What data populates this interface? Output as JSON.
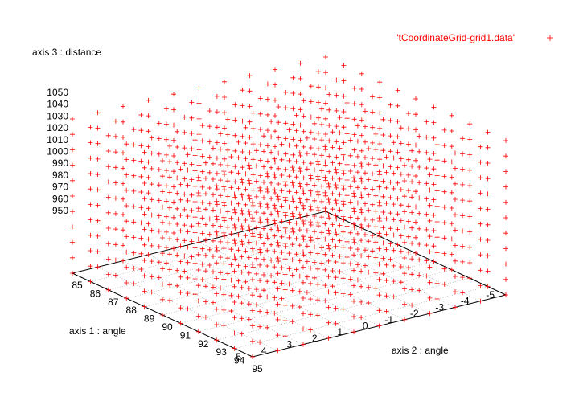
{
  "chart_data": {
    "type": "scatter",
    "title": "",
    "legend_position": "top-right",
    "grid": true,
    "axes": {
      "x": {
        "label": "axis 1 : angle",
        "range": [
          -5,
          5
        ],
        "ticks": [
          "-5",
          "-4",
          "-3",
          "-2",
          "-1",
          "0",
          "1",
          "2",
          "3",
          "4",
          "5"
        ]
      },
      "y": {
        "label": "axis 2 : angle",
        "range": [
          85,
          95
        ],
        "ticks": [
          "85",
          "86",
          "87",
          "88",
          "89",
          "90",
          "91",
          "92",
          "93",
          "94",
          "95"
        ]
      },
      "z": {
        "label": "axis 3 : distance",
        "range": [
          950,
          1050
        ],
        "ticks": [
          "950",
          "960",
          "970",
          "980",
          "990",
          "1000",
          "1010",
          "1020",
          "1030",
          "1040",
          "1050"
        ]
      }
    },
    "series": [
      {
        "name": "'tCoordinateGrid-grid1.data'",
        "marker": "plus",
        "color": "#ff0000",
        "grid_points": {
          "x": [
            -5,
            -4,
            -3,
            -2,
            -1,
            0,
            1,
            2,
            3,
            4,
            5
          ],
          "y": [
            85,
            86,
            87,
            88,
            89,
            90,
            91,
            92,
            93,
            94,
            95
          ],
          "z": [
            950,
            960,
            970,
            980,
            990,
            1000,
            1010,
            1020,
            1030,
            1040,
            1050
          ]
        }
      }
    ]
  }
}
